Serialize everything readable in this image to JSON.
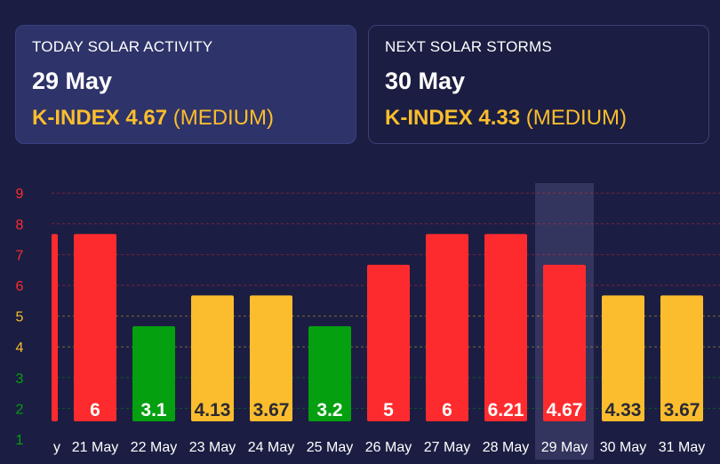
{
  "today": {
    "title": "TODAY SOLAR ACTIVITY",
    "date": "29 May",
    "kindex_text": "K-INDEX 4.67",
    "level": "(MEDIUM)"
  },
  "next": {
    "title": "NEXT SOLAR STORMS",
    "date": "30 May",
    "kindex_text": "K-INDEX 4.33",
    "level": "(MEDIUM)"
  },
  "colors": {
    "background": "#1b1e42",
    "high": "#fe2b2e",
    "medium": "#fbbd2d",
    "low": "#04a010",
    "highlight": "#33355e"
  },
  "chart_data": {
    "type": "bar",
    "categories": [
      "y",
      "21 May",
      "22 May",
      "23 May",
      "24 May",
      "25 May",
      "26 May",
      "27 May",
      "28 May",
      "29 May",
      "30 May",
      "31 May"
    ],
    "values": [
      6,
      6,
      3.1,
      4.13,
      3.67,
      3.2,
      5,
      6,
      6.21,
      4.67,
      4.33,
      3.67
    ],
    "bar_heights": [
      6.67,
      6.67,
      3.67,
      4.67,
      4.67,
      3.67,
      5.67,
      6.67,
      6.67,
      5.67,
      4.67,
      4.67
    ],
    "value_labels": [
      null,
      "6",
      "3.1",
      "4.13",
      "3.67",
      "3.2",
      "5",
      "6",
      "6.21",
      "4.67",
      "4.33",
      "3.67"
    ],
    "levels": [
      "high",
      "high",
      "low",
      "medium",
      "medium",
      "low",
      "high",
      "high",
      "high",
      "high",
      "medium",
      "medium"
    ],
    "highlight_index": 9,
    "yticks": [
      "1",
      "2",
      "3",
      "4",
      "5",
      "6",
      "7",
      "8",
      "9"
    ],
    "ytick_levels": [
      "low",
      "low",
      "low",
      "medium",
      "medium",
      "high",
      "high",
      "high",
      "high"
    ],
    "ylim": [
      1,
      9
    ],
    "grid": true
  }
}
